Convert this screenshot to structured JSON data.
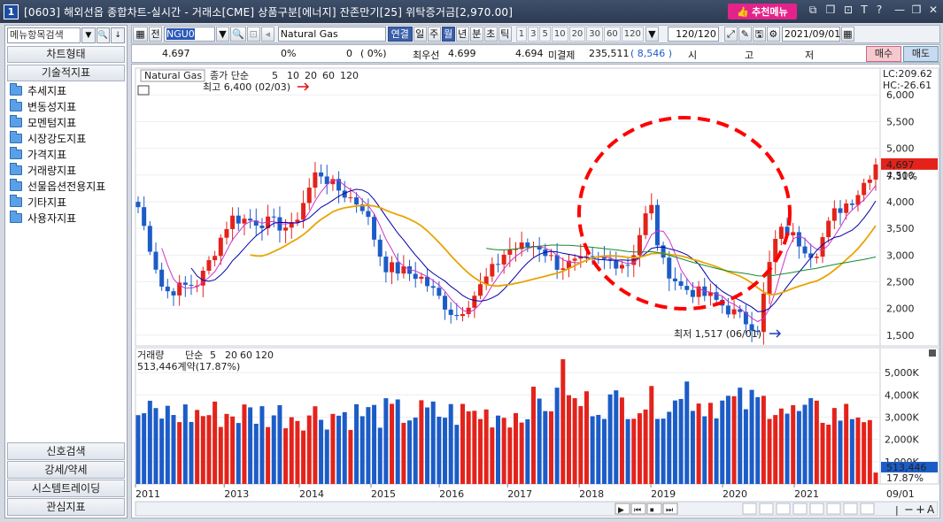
{
  "window": {
    "app_number": "1",
    "title": "[0603] 해외선옵 종합차트-실시간 - 거래소[CME] 상품구분[에너지] 잔존만기[25] 위탁증거금[2,970.00]",
    "recommend_menu": "추천메뉴",
    "controls": [
      "help-T",
      "help-?",
      "minimize",
      "restore",
      "close"
    ],
    "control_glyphs": [
      "T",
      "?",
      "—",
      "❐",
      "✕"
    ]
  },
  "left_panel": {
    "search_placeholder": "메뉴항목검색",
    "header_chart_type": "차트형태",
    "header_tech": "기술적지표",
    "tree_items": [
      "추세지표",
      "변동성지표",
      "모멘텀지표",
      "시장강도지표",
      "가격지표",
      "거래량지표",
      "선물옵션전용지표",
      "기타지표",
      "사용자지표"
    ],
    "bottom_tabs": [
      "신호검색",
      "강세/약세",
      "시스템트레이딩",
      "관심지표"
    ]
  },
  "toolbar": {
    "all_label": "전",
    "code_value": "NGU0",
    "symbol_name": "Natural Gas",
    "link_label": "연결",
    "period_buttons": [
      "일",
      "주",
      "월",
      "년",
      "분",
      "초",
      "틱"
    ],
    "selected_period": "월",
    "minute_buttons": [
      "1",
      "3",
      "5",
      "10",
      "20",
      "30",
      "60",
      "120"
    ],
    "count_value": "120/120",
    "date_value": "2021/09/01"
  },
  "quote": {
    "price": "4.697",
    "change": "0%",
    "change_pct_a": "0",
    "change_pct_b": "(    0%)",
    "best_bid_label": "최우선",
    "best_bid": "4.699",
    "best_ask": "4.694",
    "open_interest_label": "미결제",
    "open_interest": "235,511",
    "oi_change": "( 8,546 )",
    "hl_labels": [
      "시",
      "고",
      "저"
    ],
    "buy": "매수",
    "sell": "매도"
  },
  "price_panel": {
    "symbol_tag": "Natural Gas",
    "ma_label": "종가 단순",
    "ma_periods": [
      "5",
      "10",
      "20",
      "60",
      "120"
    ],
    "high_annotation": "최고 6,400 (02/03)",
    "low_annotation": "최저 1,517 (06/01)",
    "lc": "LC:209.62",
    "hc": "HC:-26.61",
    "current_price_tag": "4,697",
    "current_pct_tag": "7.31%",
    "y_ticks": [
      "6,000",
      "5,500",
      "5,000",
      "4,500",
      "4,000",
      "3,500",
      "3,000",
      "2,500",
      "2,000",
      "1,500"
    ]
  },
  "volume_panel": {
    "label": "거래량",
    "ma_label": "단순",
    "ma_periods": [
      "5",
      "20",
      "60",
      "120"
    ],
    "value_text": "513,446계약(17.87%)",
    "current_tag": "513,446",
    "current_pct": "17.87%",
    "y_ticks": [
      "5,000K",
      "4,000K",
      "3,000K",
      "2,000K",
      "1,000K"
    ]
  },
  "x_axis": {
    "years": [
      "2011",
      "2013",
      "2014",
      "2015",
      "2016",
      "2017",
      "2018",
      "2019",
      "2020",
      "2021"
    ],
    "last_label": "09/01"
  },
  "colors": {
    "up": "#e3231b",
    "down": "#1c5cc7",
    "ma5": "#cc33cc",
    "ma10": "#0000aa",
    "ma20": "#e8a400",
    "ma60": "#158a2e",
    "ma120": "#888888",
    "annotation_circle": "#ff0000"
  }
}
